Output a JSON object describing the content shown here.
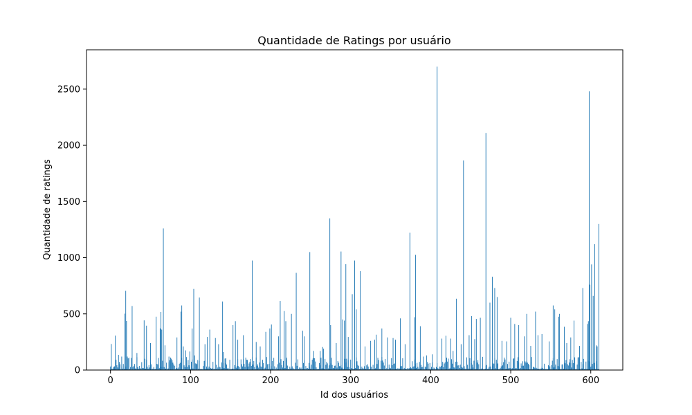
{
  "chart_data": {
    "type": "bar",
    "title": "Quantidade de Ratings por usuário",
    "xlabel": "Id dos usuários",
    "ylabel": "Quantidade de ratings",
    "xlim": [
      -30,
      640
    ],
    "ylim": [
      0,
      2850
    ],
    "xticks": [
      0,
      100,
      200,
      300,
      400,
      500,
      600
    ],
    "xtick_labels": [
      "0",
      "100",
      "200",
      "300",
      "400",
      "500",
      "600"
    ],
    "yticks": [
      0,
      500,
      1000,
      1500,
      2000,
      2500
    ],
    "ytick_labels": [
      "0",
      "500",
      "1000",
      "1500",
      "2000",
      "2500"
    ],
    "grid": false,
    "bar_color": "#1f77b4",
    "series": [
      {
        "x": [
          1,
          4,
          6,
          10,
          14,
          18,
          19,
          20,
          21,
          27,
          33,
          42,
          45,
          50,
          57,
          62,
          63,
          64,
          66,
          68,
          73,
          77,
          83,
          88,
          89,
          91,
          94,
          99,
          102,
          104,
          105,
          111,
          118,
          121,
          124,
          131,
          135,
          140,
          141,
          144,
          153,
          156,
          159,
          166,
          171,
          177,
          182,
          187,
          194,
          199,
          201,
          202,
          210,
          212,
          217,
          219,
          220,
          226,
          232,
          240,
          242,
          249,
          254,
          262,
          265,
          266,
          274,
          275,
          282,
          288,
          290,
          292,
          294,
          297,
          302,
          305,
          307,
          312,
          318,
          325,
          330,
          332,
          339,
          346,
          353,
          356,
          362,
          368,
          374,
          380,
          381,
          387,
          391,
          395,
          402,
          408,
          414,
          419,
          425,
          428,
          432,
          438,
          441,
          448,
          451,
          455,
          457,
          462,
          469,
          474,
          477,
          480,
          483,
          489,
          495,
          500,
          505,
          510,
          517,
          520,
          525,
          531,
          534,
          539,
          548,
          553,
          555,
          560,
          561,
          567,
          570,
          575,
          579,
          586,
          590,
          596,
          597,
          598,
          599,
          601,
          603,
          605,
          607,
          608,
          610
        ],
        "values": [
          232,
          29,
          306,
          135,
          120,
          502,
          705,
          437,
          120,
          570,
          152,
          442,
          395,
          240,
          475,
          370,
          517,
          360,
          1260,
          220,
          120,
          65,
          290,
          520,
          575,
          210,
          175,
          165,
          370,
          722,
          130,
          645,
          230,
          295,
          360,
          285,
          230,
          610,
          160,
          105,
          400,
          435,
          270,
          310,
          90,
          975,
          250,
          210,
          340,
          370,
          405,
          80,
          300,
          615,
          525,
          435,
          110,
          500,
          865,
          350,
          300,
          1050,
          170,
          170,
          205,
          190,
          1350,
          400,
          240,
          1055,
          450,
          440,
          942,
          295,
          675,
          975,
          540,
          880,
          210,
          260,
          270,
          315,
          370,
          290,
          285,
          270,
          460,
          230,
          1222,
          470,
          1025,
          390,
          120,
          130,
          140,
          2700,
          280,
          305,
          280,
          170,
          635,
          230,
          1865,
          310,
          480,
          275,
          455,
          465,
          2110,
          600,
          830,
          730,
          650,
          260,
          255,
          465,
          410,
          400,
          300,
          500,
          215,
          520,
          310,
          320,
          255,
          575,
          540,
          475,
          500,
          385,
          240,
          290,
          440,
          215,
          730,
          410,
          435,
          2480,
          760,
          940,
          660,
          1120,
          220,
          210,
          1300
        ]
      }
    ]
  }
}
